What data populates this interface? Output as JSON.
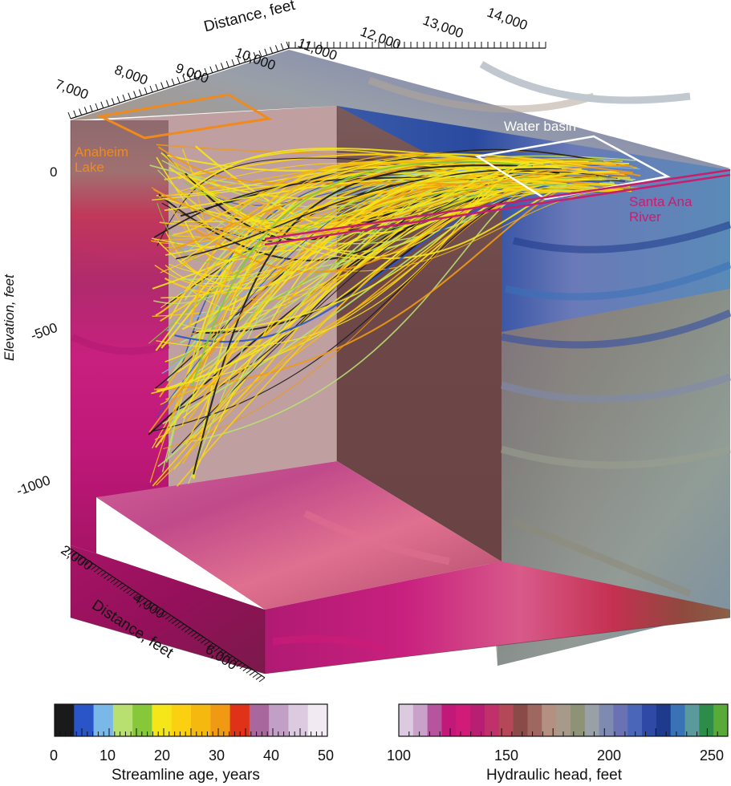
{
  "top_axis": {
    "title": "Distance, feet",
    "ticks": [
      "7,000",
      "8,000",
      "9,000",
      "10,000",
      "11,000",
      "12,000",
      "13,000",
      "14,000"
    ]
  },
  "left_axis": {
    "title": "Elevation, feet",
    "ticks": [
      "0",
      "-500",
      "-1000"
    ]
  },
  "front_axis": {
    "title": "Distance, feet",
    "ticks": [
      "2,000",
      "4,000",
      "6,000"
    ]
  },
  "annotations": {
    "anaheim_lake": "Anaheim\nLake",
    "water_basin": "Water basin",
    "santa_ana_river": "Santa Ana\nRiver"
  },
  "colors": {
    "anaheim_lake": "#f08a1c",
    "water_basin": "#ffffff",
    "santa_ana_river": "#c81e6e"
  },
  "legend_age": {
    "title": "Streamline age, years",
    "ticks": [
      "0",
      "10",
      "20",
      "30",
      "40",
      "50"
    ],
    "range": [
      0,
      50
    ],
    "colors": [
      "#1a1a1a",
      "#2a55c8",
      "#7ab8e8",
      "#b8e070",
      "#86c83a",
      "#f5e61a",
      "#fbd010",
      "#f5b80f",
      "#f09a14",
      "#e03218",
      "#a8689e",
      "#c2a0c6",
      "#dccbe0",
      "#f2eaf2"
    ]
  },
  "legend_head": {
    "title": "Hydraulic head, feet",
    "ticks": [
      "100",
      "150",
      "200",
      "250"
    ],
    "range": [
      100,
      260
    ],
    "colors": [
      "#dccbe0",
      "#c8a2c8",
      "#b6549e",
      "#c2187a",
      "#d01b79",
      "#b81e72",
      "#c0306a",
      "#b44858",
      "#8a4a48",
      "#9e6860",
      "#b49080",
      "#a89a8a",
      "#8e9276",
      "#9aa0a8",
      "#7f8ab0",
      "#6a72b4",
      "#4a66b8",
      "#2f4aa6",
      "#1e3a8c",
      "#3a72b8",
      "#5a9a9c",
      "#2e8c4a",
      "#5aaa3a"
    ]
  }
}
